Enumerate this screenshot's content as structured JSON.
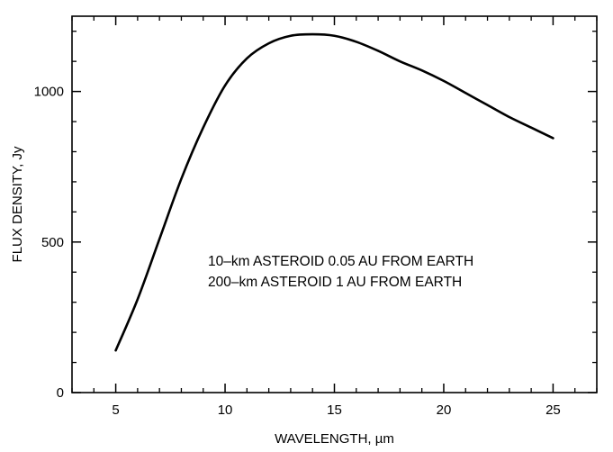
{
  "chart_data": {
    "type": "line",
    "title": "",
    "xlabel": "WAVELENGTH, µm",
    "ylabel": "FLUX DENSITY, Jy",
    "xlim": [
      3,
      27
    ],
    "ylim": [
      0,
      1250
    ],
    "x_ticks": [
      5,
      10,
      15,
      20,
      25
    ],
    "x_tick_labels": [
      "5",
      "10",
      "15",
      "20",
      "25"
    ],
    "x_minor_step": 1,
    "y_ticks": [
      0,
      500,
      1000
    ],
    "y_tick_labels": [
      "0",
      "500",
      "1000"
    ],
    "y_minor_step": 100,
    "grid": false,
    "legend": "none",
    "annotations": [
      "10–km ASTEROID 0.05 AU FROM EARTH",
      "200–km ASTEROID 1 AU FROM EARTH"
    ],
    "series": [
      {
        "x": [
          5,
          6,
          7,
          8,
          9,
          10,
          11,
          12,
          13,
          14,
          15,
          16,
          17,
          18,
          19,
          20,
          21,
          22,
          23,
          24,
          25
        ],
        "y": [
          140,
          310,
          510,
          710,
          880,
          1020,
          1110,
          1160,
          1185,
          1190,
          1185,
          1165,
          1135,
          1100,
          1070,
          1035,
          995,
          955,
          915,
          880,
          845
        ]
      }
    ],
    "colors": {
      "line": "#000000",
      "frame": "#000000",
      "background": "#ffffff"
    }
  }
}
